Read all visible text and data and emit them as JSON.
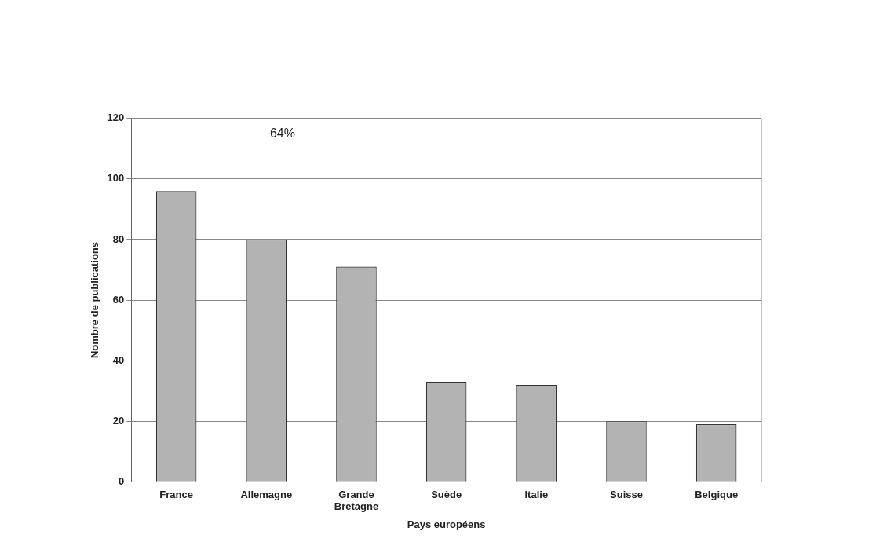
{
  "chart_data": {
    "type": "bar",
    "xlabel": "Pays européens",
    "ylabel": "Nombre de publications",
    "categories": [
      "France",
      "Allemagne",
      "Grande Bretagne",
      "Suède",
      "Italie",
      "Suisse",
      "Belgique"
    ],
    "values": [
      96,
      80,
      71,
      33,
      32,
      20,
      19
    ],
    "color": "#b3b3b3",
    "ylim": [
      0,
      120
    ],
    "yticks": [
      0,
      20,
      40,
      60,
      80,
      100,
      120
    ],
    "grid": "y",
    "legend": false,
    "annotations": [
      "64%"
    ]
  }
}
